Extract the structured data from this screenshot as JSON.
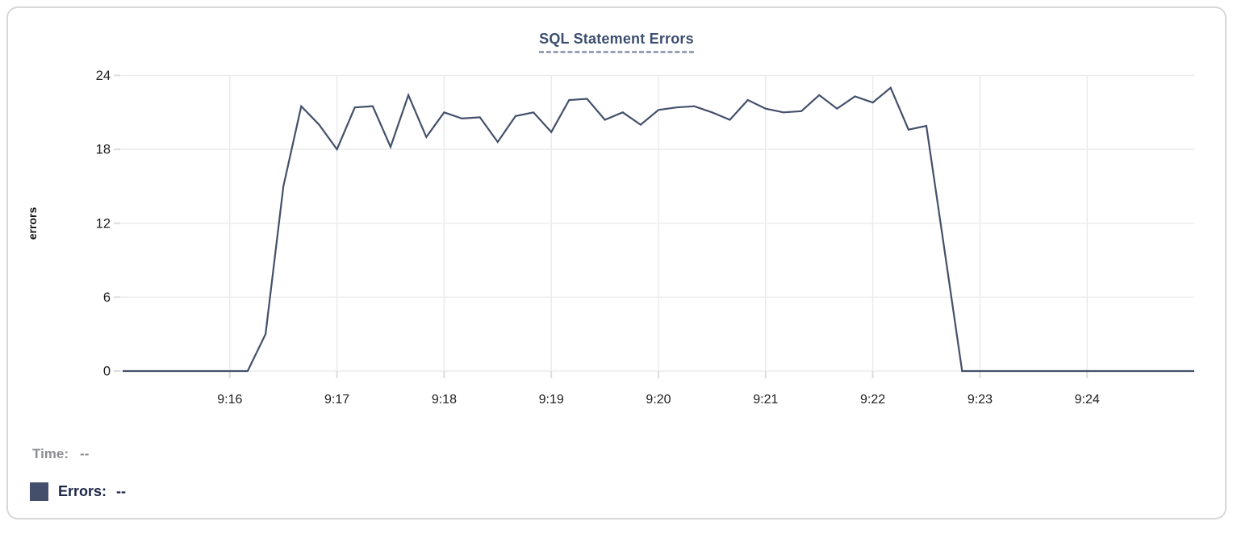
{
  "card": {
    "title": "SQL Statement Errors"
  },
  "tooltip": {
    "time_label": "Time:",
    "time_value": "--",
    "series_label": "Errors:",
    "series_value": "--"
  },
  "colors": {
    "line": "#44506B",
    "title": "#3D4E6F",
    "grid": "#ECECEC",
    "tick_stub": "#DDDDDD",
    "tick_text": "#1D1D1F",
    "time_text": "#8C8E92",
    "errors_text": "#1C2647",
    "card_border": "#D8D8D8",
    "legend_swatch": "#44506B"
  },
  "chart_data": {
    "type": "line",
    "title": "SQL Statement Errors",
    "xlabel": "",
    "ylabel": "errors",
    "ylim": [
      0,
      24
    ],
    "y_ticks": [
      0,
      6,
      12,
      18,
      24
    ],
    "x_tick_labels": [
      "9:16",
      "9:17",
      "9:18",
      "9:19",
      "9:20",
      "9:21",
      "9:22",
      "9:23",
      "9:24"
    ],
    "x_start": "9:15:00",
    "x_end": "9:25:00",
    "sample_interval_seconds": 10,
    "grid": true,
    "legend_position": "bottom-left",
    "series": [
      {
        "name": "Errors",
        "values": [
          0,
          0,
          0,
          0,
          0,
          0,
          0,
          0,
          3,
          15,
          21.5,
          20,
          18,
          21.4,
          21.5,
          18.2,
          22.4,
          19,
          21,
          20.5,
          20.6,
          18.6,
          20.7,
          21,
          19.4,
          22,
          22.1,
          20.4,
          21,
          20,
          21.2,
          21.4,
          21.5,
          21,
          20.4,
          22,
          21.3,
          21,
          21.1,
          22.4,
          21.3,
          22.3,
          21.8,
          23,
          19.6,
          19.9,
          10,
          0,
          0,
          0,
          0,
          0,
          0,
          0,
          0,
          0,
          0,
          0,
          0,
          0,
          0
        ]
      }
    ]
  }
}
